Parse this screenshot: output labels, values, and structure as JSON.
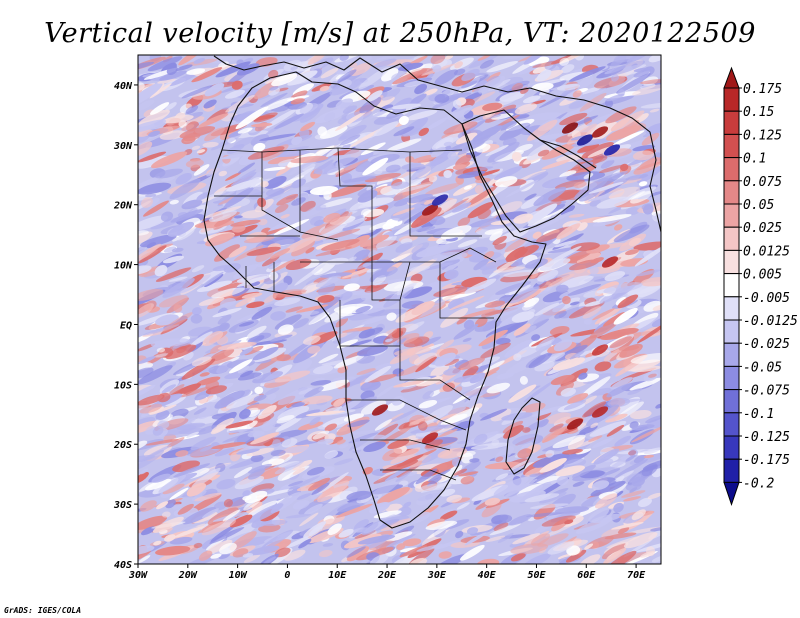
{
  "title": "Vertical velocity [m/s] at 250hPa, VT: 2020122509",
  "credit": "GrADS: IGES/COLA",
  "map": {
    "lon_range": [
      -30,
      75
    ],
    "lat_range": [
      -40,
      45
    ],
    "x_ticks": [
      "30W",
      "20W",
      "10W",
      "0",
      "10E",
      "20E",
      "30E",
      "40E",
      "50E",
      "60E",
      "70E"
    ],
    "x_tick_values": [
      -30,
      -20,
      -10,
      0,
      10,
      20,
      30,
      40,
      50,
      60,
      70
    ],
    "y_ticks": [
      "40N",
      "30N",
      "20N",
      "10N",
      "EQ",
      "10S",
      "20S",
      "30S",
      "40S"
    ],
    "y_tick_values": [
      40,
      30,
      20,
      10,
      0,
      -10,
      -20,
      -30,
      -40
    ]
  },
  "colorbar": {
    "labels": [
      "0.175",
      "0.15",
      "0.125",
      "0.1",
      "0.075",
      "0.05",
      "0.025",
      "0.0125",
      "0.005",
      "-0.005",
      "-0.0125",
      "-0.025",
      "-0.05",
      "-0.075",
      "-0.1",
      "-0.125",
      "-0.175",
      "-0.2"
    ],
    "colors": [
      "#a01818",
      "#b82828",
      "#c83c3c",
      "#d25050",
      "#dc6c6c",
      "#e48888",
      "#eca4a4",
      "#f4c6c6",
      "#f8e0e0",
      "#ffffff",
      "#e0e0f8",
      "#c6c6f2",
      "#a8a8ea",
      "#8c8ce2",
      "#7070d8",
      "#5454cc",
      "#3838bc",
      "#2020a8",
      "#0c0c8c"
    ]
  }
}
